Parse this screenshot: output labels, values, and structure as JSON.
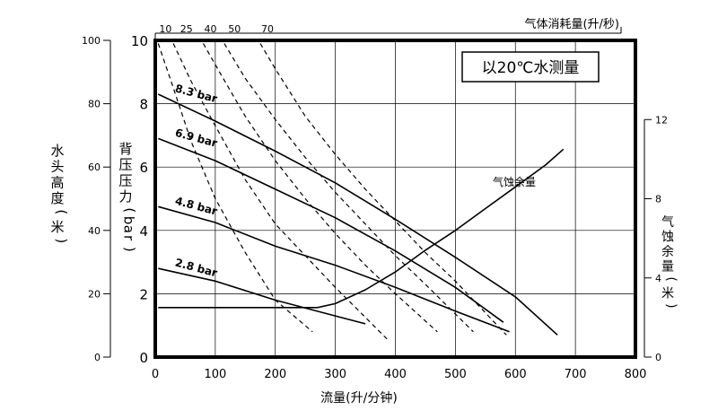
{
  "chart_data": {
    "type": "line",
    "xlabel": "流量(升/分钟)",
    "x_ticks": [
      0,
      100,
      200,
      300,
      400,
      500,
      600,
      700,
      800
    ],
    "xlim": [
      0,
      800
    ],
    "top_axis_label": "气体消耗量(升/秒)",
    "top_ticks": [
      {
        "label": "10",
        "x": 5
      },
      {
        "label": "25",
        "x": 40
      },
      {
        "label": "40",
        "x": 80
      },
      {
        "label": "50",
        "x": 120
      },
      {
        "label": "70",
        "x": 175
      }
    ],
    "ylabel_left_outer": "水头高度(米)",
    "ylim_left_outer": [
      0,
      100
    ],
    "y_ticks_left_outer": [
      0,
      20,
      40,
      60,
      80,
      100
    ],
    "ylabel_left_inner": "背压压力(bar)",
    "ylim_left_inner": [
      0,
      10
    ],
    "y_ticks_left_inner": [
      0,
      2,
      4,
      6,
      8,
      10
    ],
    "ylabel_right": "气蚀余量(米)",
    "ylim_right": [
      0,
      16
    ],
    "y_ticks_right": [
      0,
      4,
      8,
      12
    ],
    "annotation": "以20℃水测量",
    "npsh_label": "气蚀余量",
    "grid": true,
    "series": [
      {
        "name": "8.3 bar",
        "label": "8.3 bar",
        "style": "solid",
        "x": [
          5,
          100,
          200,
          300,
          400,
          500,
          600,
          670
        ],
        "y": [
          8.3,
          7.45,
          6.5,
          5.5,
          4.35,
          3.15,
          1.9,
          0.7
        ]
      },
      {
        "name": "6.9 bar",
        "label": "6.9 bar",
        "style": "solid",
        "x": [
          5,
          100,
          200,
          300,
          400,
          500,
          580
        ],
        "y": [
          6.9,
          6.2,
          5.3,
          4.4,
          3.35,
          2.2,
          1.1
        ]
      },
      {
        "name": "4.8 bar",
        "label": "4.8 bar",
        "style": "solid",
        "x": [
          5,
          100,
          200,
          300,
          400,
          500,
          590
        ],
        "y": [
          4.75,
          4.25,
          3.5,
          2.9,
          2.2,
          1.45,
          0.8
        ]
      },
      {
        "name": "2.8 bar",
        "label": "2.8 bar",
        "style": "solid",
        "x": [
          5,
          100,
          200,
          300,
          350
        ],
        "y": [
          2.8,
          2.4,
          1.8,
          1.3,
          1.05
        ]
      },
      {
        "name": "气蚀余量",
        "style": "solid",
        "axis": "right",
        "x": [
          5,
          270,
          300,
          350,
          400,
          450,
          500,
          550,
          600,
          650,
          680
        ],
        "y": [
          2.5,
          2.5,
          2.7,
          3.4,
          4.3,
          5.4,
          6.4,
          7.5,
          8.6,
          9.7,
          10.5
        ]
      },
      {
        "name": "10",
        "style": "dashed",
        "x": [
          5,
          30,
          60,
          100,
          150,
          200,
          262
        ],
        "y": [
          9.9,
          8.5,
          6.8,
          5.0,
          3.3,
          1.8,
          0.8
        ]
      },
      {
        "name": "25",
        "style": "dashed",
        "x": [
          30,
          60,
          100,
          150,
          200,
          300,
          390
        ],
        "y": [
          9.9,
          8.7,
          7.3,
          5.6,
          4.2,
          2.2,
          0.5
        ]
      },
      {
        "name": "40",
        "style": "dashed",
        "x": [
          80,
          110,
          150,
          200,
          250,
          300,
          350,
          400,
          470
        ],
        "y": [
          9.9,
          8.9,
          7.6,
          6.2,
          5.0,
          3.9,
          2.9,
          2.0,
          0.8
        ]
      },
      {
        "name": "50",
        "style": "dashed",
        "x": [
          115,
          150,
          200,
          250,
          300,
          350,
          400,
          450,
          530
        ],
        "y": [
          9.9,
          8.8,
          7.5,
          6.3,
          5.2,
          4.2,
          3.2,
          2.3,
          0.8
        ]
      },
      {
        "name": "70",
        "style": "dashed",
        "x": [
          175,
          200,
          250,
          300,
          350,
          400,
          450,
          500,
          585
        ],
        "y": [
          9.9,
          9.1,
          7.6,
          6.4,
          5.3,
          4.3,
          3.3,
          2.4,
          0.7
        ]
      }
    ]
  }
}
